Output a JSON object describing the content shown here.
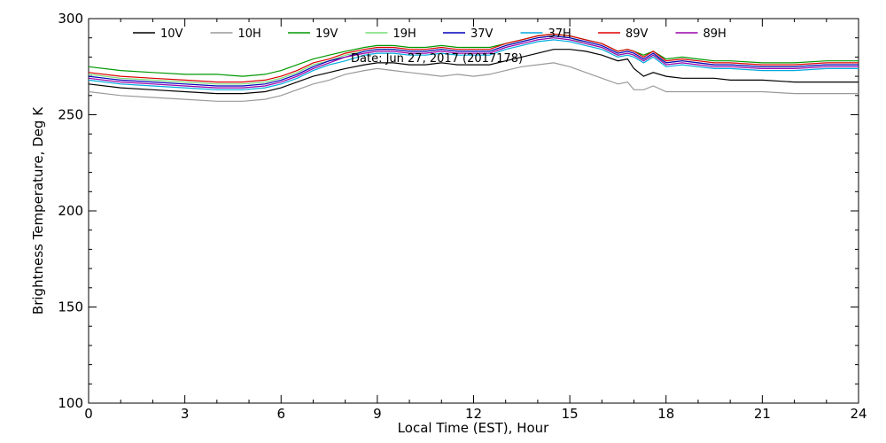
{
  "chart_data": {
    "type": "line",
    "annotation": "Date: Jun 27, 2017 (2017178)",
    "xlabel": "Local Time (EST), Hour",
    "ylabel": "Brightness Temperature, Deg K",
    "xlim": [
      0,
      24
    ],
    "ylim": [
      100,
      300
    ],
    "xticks": [
      0,
      3,
      6,
      9,
      12,
      15,
      18,
      21,
      24
    ],
    "xtick_labels": [
      "0",
      "3",
      "6",
      "9",
      "12",
      "15",
      "18",
      "21",
      "24"
    ],
    "yticks": [
      100,
      150,
      200,
      250,
      300
    ],
    "ytick_labels": [
      "100",
      "150",
      "200",
      "250",
      "300"
    ],
    "grid": false,
    "legend_position": "top",
    "x": [
      0,
      1,
      2,
      3,
      4,
      4.8,
      5.5,
      6,
      6.5,
      7,
      7.5,
      8,
      8.6,
      9,
      9.5,
      10,
      10.5,
      11,
      11.5,
      12,
      12.5,
      13,
      13.5,
      14,
      14.5,
      15,
      15.5,
      16,
      16.5,
      16.8,
      17,
      17.3,
      17.6,
      18,
      18.5,
      19,
      19.5,
      20,
      21,
      22,
      23,
      24
    ],
    "series": [
      {
        "name": "10V",
        "color": "#000000",
        "values": [
          266,
          264,
          263,
          262,
          261,
          261,
          262,
          264,
          267,
          270,
          272,
          274,
          276,
          277,
          277,
          276,
          276,
          277,
          276,
          276,
          276,
          278,
          280,
          282,
          284,
          284,
          283,
          281,
          278,
          279,
          274,
          270,
          272,
          270,
          269,
          269,
          269,
          268,
          268,
          267,
          267,
          267
        ]
      },
      {
        "name": "10H",
        "color": "#999999",
        "values": [
          262,
          260,
          259,
          258,
          257,
          257,
          258,
          260,
          263,
          266,
          268,
          271,
          273,
          274,
          273,
          272,
          271,
          270,
          271,
          270,
          271,
          273,
          275,
          276,
          277,
          275,
          272,
          269,
          266,
          267,
          263,
          263,
          265,
          262,
          262,
          262,
          262,
          262,
          262,
          261,
          261,
          261
        ]
      },
      {
        "name": "19V",
        "color": "#009900",
        "values": [
          275,
          273,
          272,
          271,
          271,
          270,
          271,
          273,
          276,
          279,
          281,
          283,
          285,
          286,
          286,
          285,
          285,
          286,
          285,
          285,
          285,
          287,
          289,
          291,
          292,
          291,
          289,
          287,
          283,
          284,
          283,
          281,
          283,
          279,
          280,
          279,
          278,
          278,
          277,
          277,
          278,
          278
        ]
      },
      {
        "name": "19H",
        "color": "#77dd77",
        "values": [
          271,
          269,
          268,
          267,
          266,
          266,
          267,
          269,
          272,
          276,
          278,
          281,
          283,
          284,
          284,
          283,
          283,
          284,
          283,
          283,
          283,
          286,
          288,
          290,
          291,
          290,
          287,
          285,
          281,
          282,
          281,
          278,
          281,
          277,
          278,
          277,
          276,
          276,
          275,
          275,
          276,
          276
        ]
      },
      {
        "name": "37V",
        "color": "#0000bb",
        "values": [
          270,
          268,
          267,
          266,
          265,
          265,
          266,
          268,
          271,
          275,
          278,
          280,
          283,
          284,
          284,
          283,
          283,
          284,
          283,
          283,
          283,
          286,
          288,
          290,
          291,
          290,
          288,
          286,
          282,
          283,
          282,
          279,
          282,
          277,
          278,
          277,
          276,
          276,
          275,
          275,
          276,
          276
        ]
      },
      {
        "name": "37H",
        "color": "#00aadd",
        "values": [
          268,
          266,
          265,
          264,
          263,
          263,
          264,
          266,
          269,
          273,
          276,
          278,
          281,
          282,
          282,
          281,
          281,
          282,
          281,
          281,
          281,
          284,
          286,
          288,
          289,
          288,
          286,
          284,
          280,
          281,
          280,
          277,
          280,
          275,
          276,
          275,
          274,
          274,
          273,
          273,
          274,
          274
        ]
      },
      {
        "name": "89V",
        "color": "#dd0000",
        "values": [
          272,
          270,
          269,
          268,
          267,
          267,
          268,
          270,
          273,
          277,
          279,
          282,
          284,
          285,
          285,
          284,
          284,
          285,
          284,
          284,
          284,
          287,
          289,
          291,
          292,
          291,
          289,
          287,
          283,
          284,
          283,
          280,
          283,
          278,
          279,
          278,
          277,
          277,
          276,
          276,
          277,
          277
        ]
      },
      {
        "name": "89H",
        "color": "#9900aa",
        "values": [
          269,
          267,
          266,
          265,
          264,
          264,
          265,
          267,
          270,
          274,
          277,
          280,
          282,
          283,
          283,
          282,
          282,
          283,
          282,
          282,
          282,
          285,
          287,
          289,
          290,
          289,
          287,
          285,
          281,
          282,
          281,
          278,
          281,
          276,
          277,
          276,
          275,
          275,
          274,
          274,
          275,
          275
        ]
      }
    ]
  }
}
